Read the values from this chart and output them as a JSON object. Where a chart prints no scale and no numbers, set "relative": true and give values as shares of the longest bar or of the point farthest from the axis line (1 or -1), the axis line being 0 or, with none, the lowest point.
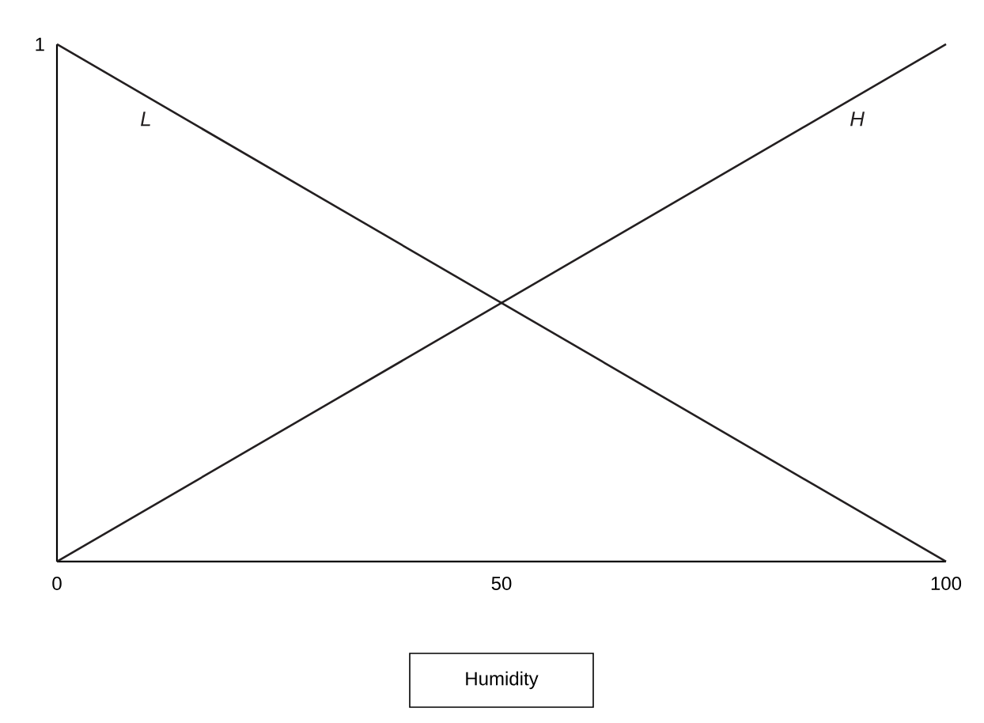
{
  "chart_data": {
    "type": "line",
    "xlabel": "Humidity",
    "relative": true,
    "annotations": [
      "1"
    ],
    "x": [
      0,
      100
    ],
    "series": [
      {
        "name": "L",
        "color": "#231f20",
        "values": [
          1,
          0
        ]
      },
      {
        "name": "H",
        "color": "#231f20",
        "values": [
          0,
          1
        ]
      }
    ],
    "xlim": [
      0,
      100
    ],
    "xticks": [
      0,
      50,
      100
    ],
    "grid": false,
    "legend": false,
    "marker": "none",
    "line_style": "solid"
  }
}
